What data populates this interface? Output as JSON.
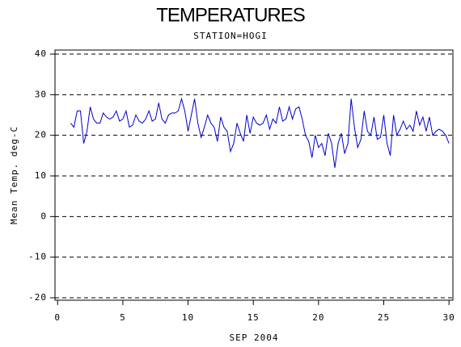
{
  "chart_data": {
    "type": "line",
    "title": "TEMPERATURES",
    "subtitle": "STATION=HOGI",
    "x_label": "SEP 2004",
    "y_label": "Mean Temp. deg-C",
    "xlim": [
      -0.2,
      30.3
    ],
    "xticks": [
      0,
      5,
      10,
      15,
      20,
      25,
      30
    ],
    "ylim": [
      -20.6,
      41
    ],
    "yticks": [
      -20,
      -10,
      0,
      10,
      20,
      30,
      40
    ],
    "grid": true,
    "series": [
      {
        "color": "#0000cc",
        "x": [
          1,
          1.25,
          1.5,
          1.75,
          2,
          2.25,
          2.5,
          2.75,
          3,
          3.25,
          3.5,
          3.75,
          4,
          4.25,
          4.5,
          4.75,
          5,
          5.25,
          5.5,
          5.75,
          6,
          6.25,
          6.5,
          6.75,
          7,
          7.25,
          7.5,
          7.75,
          8,
          8.25,
          8.5,
          8.75,
          9,
          9.25,
          9.5,
          9.75,
          10,
          10.25,
          10.5,
          10.75,
          11,
          11.25,
          11.5,
          11.75,
          12,
          12.25,
          12.5,
          12.75,
          13,
          13.25,
          13.5,
          13.75,
          14,
          14.25,
          14.5,
          14.75,
          15,
          15.25,
          15.5,
          15.75,
          16,
          16.25,
          16.5,
          16.75,
          17,
          17.25,
          17.5,
          17.75,
          18,
          18.25,
          18.5,
          18.75,
          19,
          19.25,
          19.5,
          19.75,
          20,
          20.25,
          20.5,
          20.75,
          21,
          21.25,
          21.5,
          21.75,
          22,
          22.25,
          22.5,
          22.75,
          23,
          23.25,
          23.5,
          23.75,
          24,
          24.25,
          24.5,
          24.75,
          25,
          25.25,
          25.5,
          25.75,
          26,
          26.25,
          26.5,
          26.75,
          27,
          27.25,
          27.5,
          27.75,
          28,
          28.25,
          28.5,
          28.75,
          29,
          29.25,
          29.5,
          29.75,
          30
        ],
        "values": [
          23,
          22,
          26,
          26,
          18,
          21,
          27,
          24,
          23,
          23,
          25.5,
          24.5,
          24,
          24.5,
          26,
          23.5,
          24,
          26,
          22,
          22.5,
          25,
          23.5,
          23,
          24,
          26,
          23.5,
          24,
          28,
          24,
          23,
          25,
          25.5,
          25.5,
          26,
          29,
          26,
          21,
          25,
          29,
          23,
          19.5,
          22,
          25,
          23,
          22,
          18.5,
          24.5,
          22,
          21,
          16,
          18,
          23,
          20.5,
          18.5,
          25,
          20.5,
          24.5,
          23,
          22.5,
          23,
          25,
          21.5,
          24,
          23,
          27,
          23.5,
          24,
          27,
          24,
          26.5,
          27,
          24,
          20,
          18.5,
          14.5,
          20,
          17,
          18,
          15,
          20.5,
          18,
          12,
          18,
          20.5,
          15.5,
          18,
          29,
          22,
          17,
          19,
          26,
          21,
          20,
          24.5,
          19,
          19.5,
          25,
          18,
          15,
          25,
          20,
          21.5,
          23.5,
          21.5,
          22.5,
          21,
          26,
          22.5,
          24.5,
          21,
          24.5,
          20,
          21,
          21.5,
          21,
          20,
          18
        ]
      }
    ]
  }
}
